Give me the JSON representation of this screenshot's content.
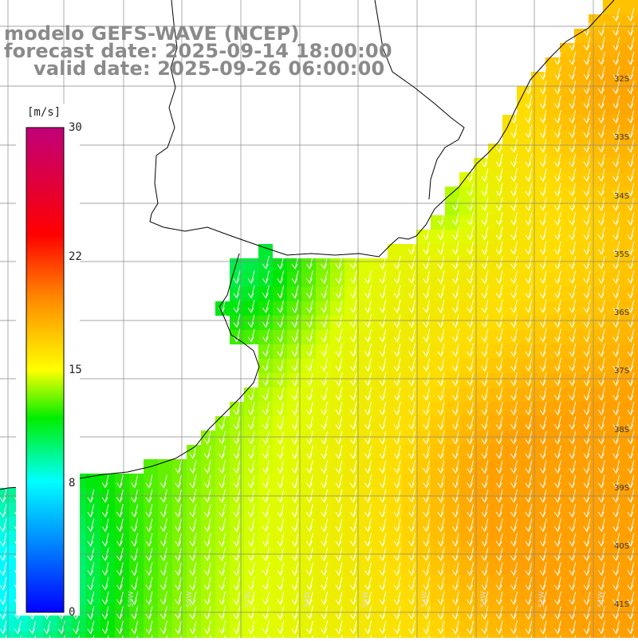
{
  "title": {
    "line1": "modelo GEFS-WAVE (NCEP)",
    "line2": "forecast date: 2025-09-14 18:00:00",
    "line3": "valid date: 2025-09-26 06:00:00"
  },
  "colorbar": {
    "units": "[m/s]",
    "ticks": [
      "30",
      "22",
      "15",
      "8",
      "0"
    ],
    "tick_values": [
      30,
      22,
      15,
      8,
      0
    ],
    "min": 0,
    "max": 30,
    "colors": [
      "#0000ff",
      "#00ffff",
      "#00ff00",
      "#ffff00",
      "#ff8800",
      "#ff0000",
      "#c0007a"
    ]
  },
  "lat_labels": [
    "32S",
    "33S",
    "34S",
    "35S",
    "36S",
    "37S",
    "38S",
    "39S",
    "40S",
    "41S"
  ],
  "lon_labels": [
    "59W",
    "58W",
    "57W",
    "56W",
    "55W",
    "54W",
    "53W",
    "52W",
    "51W"
  ],
  "map": {
    "land_color": "#ffffff",
    "grid_color": "#888888",
    "coast_color": "#000000",
    "arrow_color": "#ffffff",
    "wind_direction": "from north-northeast toward south-southwest"
  }
}
